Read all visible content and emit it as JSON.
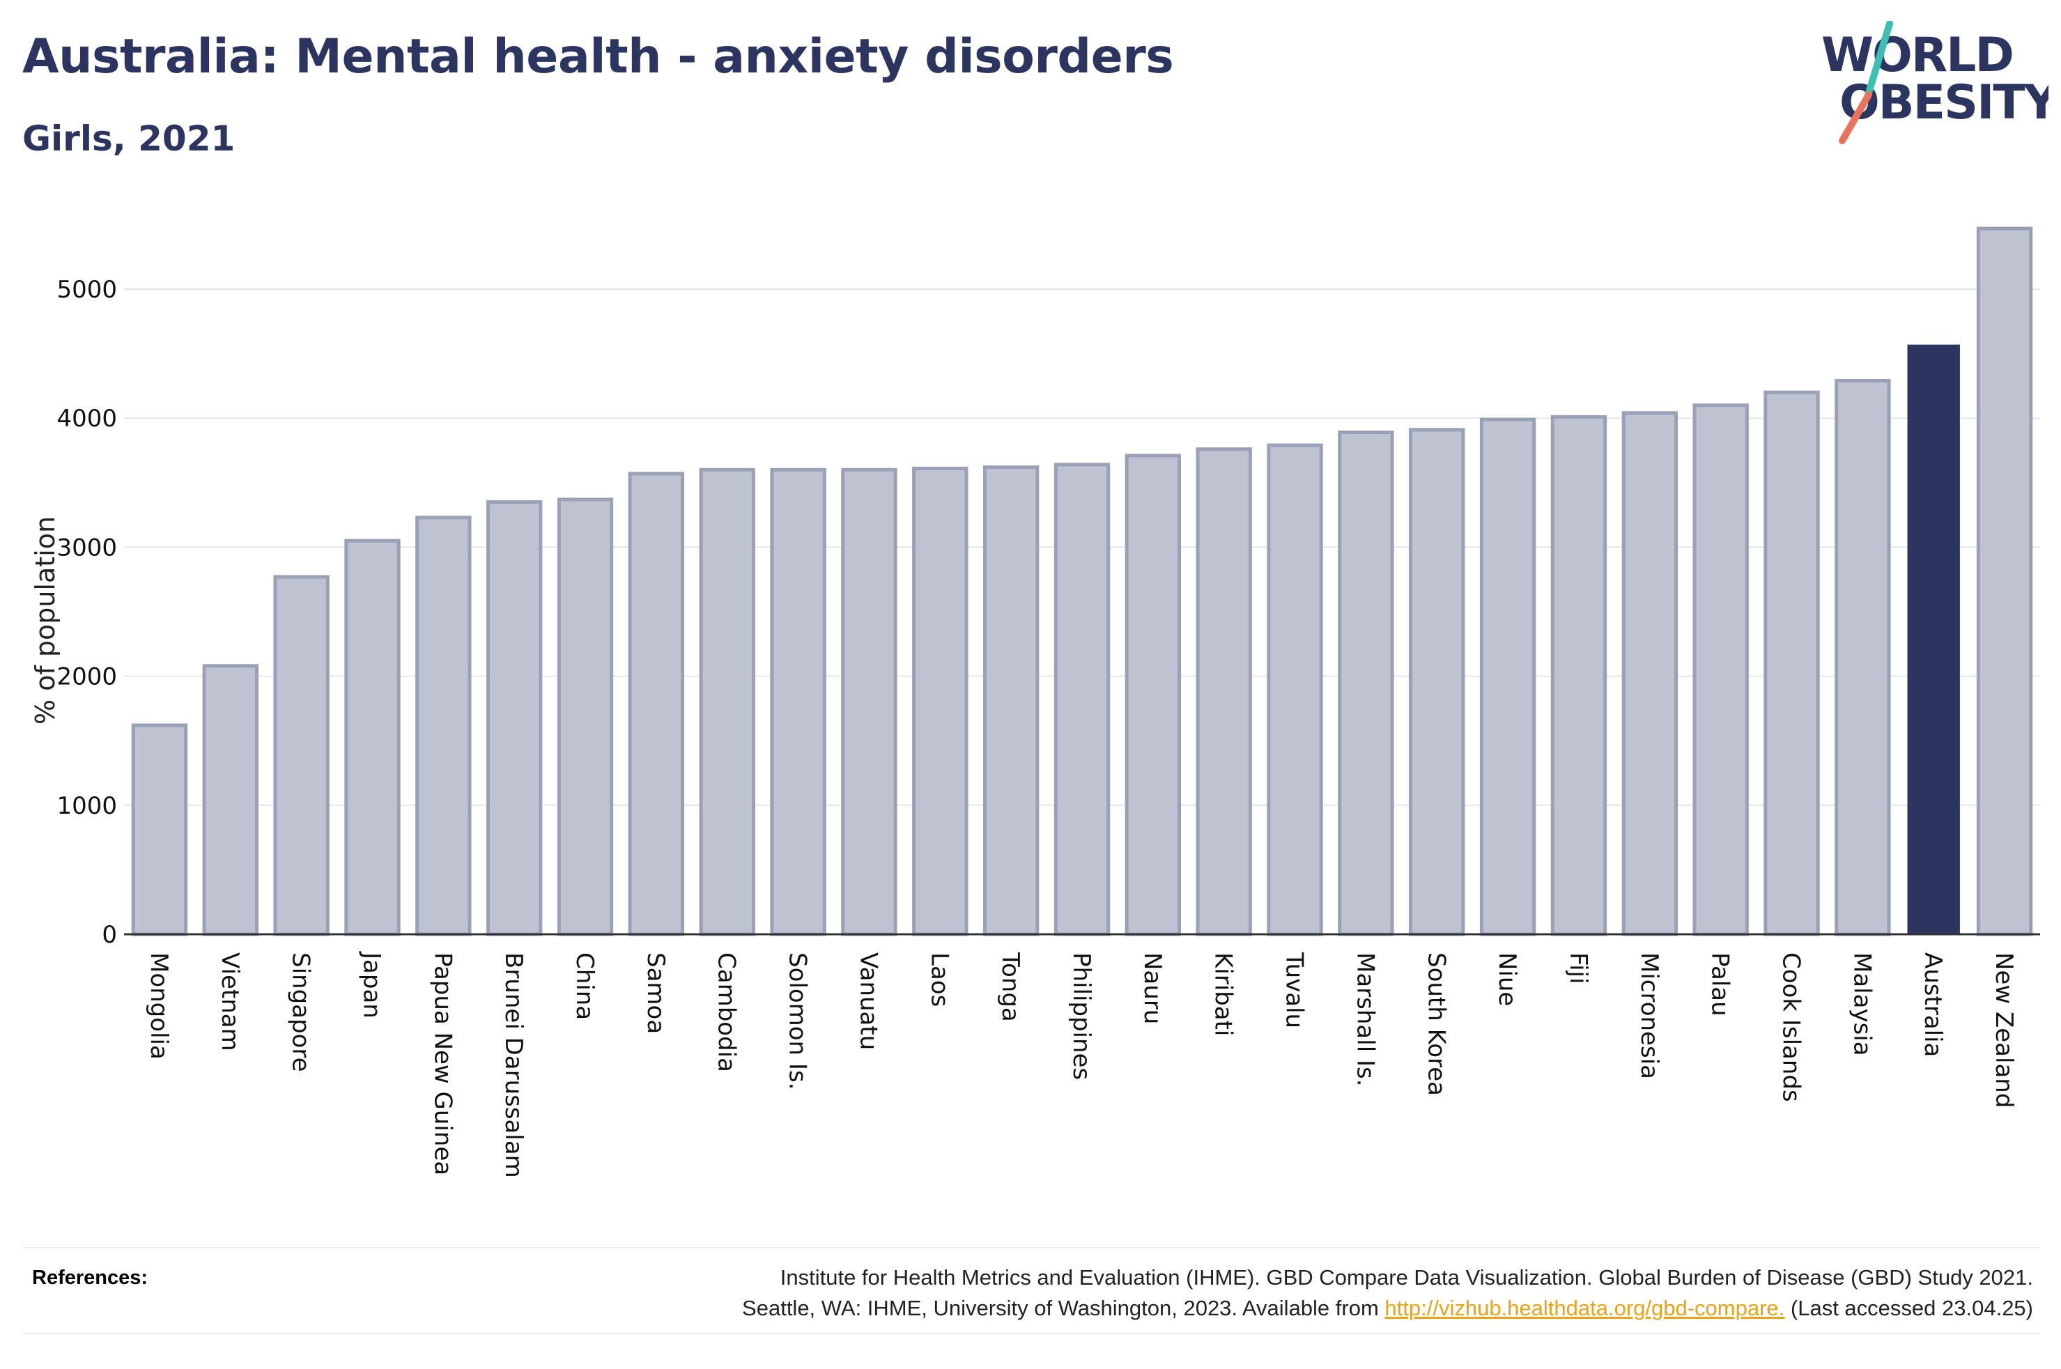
{
  "header": {
    "title": "Australia: Mental health - anxiety disorders",
    "subtitle": "Girls, 2021"
  },
  "logo": {
    "line1": "WORLD",
    "line2": "OBESITY",
    "text_color": "#2b3560",
    "slash_colors": [
      "#3fbfb4",
      "#e8735a"
    ]
  },
  "chart_data": {
    "type": "bar",
    "title": "Australia: Mental health - anxiety disorders",
    "subtitle": "Girls, 2021",
    "xlabel": "",
    "ylabel": "% of population",
    "ylim": [
      0,
      5500
    ],
    "yticks": [
      0,
      1000,
      2000,
      3000,
      4000,
      5000
    ],
    "grid": true,
    "highlight": "Australia",
    "colors": {
      "bar": "#bfc3d1",
      "bar_edge": "#9aa0b6",
      "highlight": "#2b3560",
      "grid": "#e5e5e5",
      "axis": "#333333"
    },
    "categories": [
      "Mongolia",
      "Vietnam",
      "Singapore",
      "Japan",
      "Papua New Guinea",
      "Brunei Darussalam",
      "China",
      "Samoa",
      "Cambodia",
      "Solomon Is.",
      "Vanuatu",
      "Laos",
      "Tonga",
      "Philippines",
      "Nauru",
      "Kiribati",
      "Tuvalu",
      "Marshall Is.",
      "South Korea",
      "Niue",
      "Fiji",
      "Micronesia",
      "Palau",
      "Cook Islands",
      "Malaysia",
      "Australia",
      "New Zealand"
    ],
    "values": [
      1620,
      2080,
      2770,
      3050,
      3230,
      3350,
      3370,
      3570,
      3600,
      3600,
      3600,
      3610,
      3620,
      3640,
      3710,
      3760,
      3790,
      3890,
      3910,
      3990,
      4010,
      4040,
      4100,
      4200,
      4290,
      4570,
      5470
    ]
  },
  "references": {
    "label": "References:",
    "line1": "Institute for Health Metrics and Evaluation (IHME). GBD Compare Data Visualization. Global Burden of Disease (GBD) Study 2021.",
    "line2_prefix": "Seattle, WA: IHME, University of Washington, 2023. Available from ",
    "link_text": "http://vizhub.healthdata.org/gbd-compare.",
    "line2_suffix": " (Last accessed 23.04.25)"
  }
}
